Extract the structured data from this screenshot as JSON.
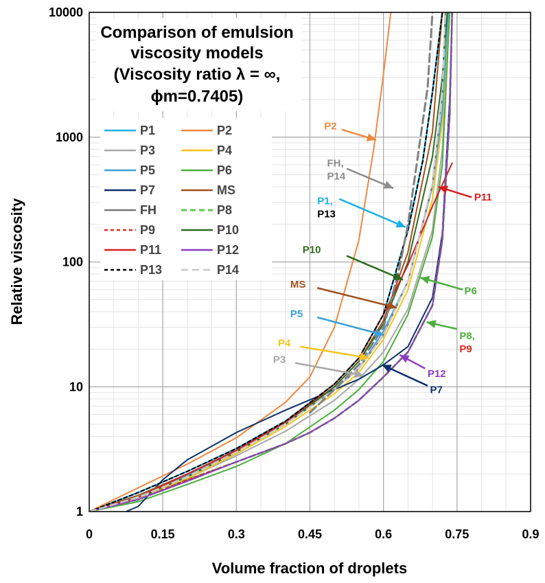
{
  "chart_data": {
    "type": "line",
    "title_lines": [
      "Comparison of emulsion",
      "viscosity models",
      "(Viscosity ratio λ = ∞,",
      "ϕm=0.7405)"
    ],
    "xlabel": "Volume fraction of droplets",
    "ylabel": "Relative viscosity",
    "xlim": [
      0,
      0.9
    ],
    "ylim": [
      1,
      10000
    ],
    "yscale": "log",
    "x_ticks": [
      "0",
      "0.15",
      "0.3",
      "0.45",
      "0.6",
      "0.75",
      "0.9"
    ],
    "x_tick_values": [
      0,
      0.15,
      0.3,
      0.45,
      0.6,
      0.75,
      0.9
    ],
    "y_ticks": [
      "1",
      "10",
      "100",
      "1000",
      "10000"
    ],
    "y_tick_values": [
      1,
      10,
      100,
      1000,
      10000
    ],
    "grid": true,
    "legend_location": "upper-left",
    "series": [
      {
        "name": "P1",
        "color": "#1ab0e8",
        "width": 2.5,
        "dash": "",
        "points": [
          [
            0,
            1
          ],
          [
            0.1,
            1.42
          ],
          [
            0.2,
            2.1
          ],
          [
            0.3,
            3.2
          ],
          [
            0.4,
            5.3
          ],
          [
            0.5,
            10.5
          ],
          [
            0.55,
            17
          ],
          [
            0.6,
            38
          ],
          [
            0.65,
            180
          ],
          [
            0.68,
            640
          ],
          [
            0.7,
            2300
          ],
          [
            0.72,
            10000
          ]
        ]
      },
      {
        "name": "P2",
        "color": "#f0873f",
        "width": 2,
        "dash": "",
        "points": [
          [
            0,
            1
          ],
          [
            0.1,
            1.55
          ],
          [
            0.2,
            2.4
          ],
          [
            0.3,
            3.9
          ],
          [
            0.4,
            7.5
          ],
          [
            0.45,
            12
          ],
          [
            0.5,
            30
          ],
          [
            0.55,
            150
          ],
          [
            0.58,
            800
          ],
          [
            0.6,
            3200
          ],
          [
            0.615,
            10000
          ]
        ]
      },
      {
        "name": "P3",
        "color": "#a8a8a8",
        "width": 2,
        "dash": "",
        "points": [
          [
            0,
            1
          ],
          [
            0.1,
            1.3
          ],
          [
            0.2,
            1.85
          ],
          [
            0.3,
            2.8
          ],
          [
            0.4,
            4.4
          ],
          [
            0.5,
            7.8
          ],
          [
            0.55,
            11.5
          ],
          [
            0.6,
            19
          ],
          [
            0.65,
            42
          ],
          [
            0.7,
            180
          ],
          [
            0.72,
            800
          ],
          [
            0.735,
            10000
          ]
        ]
      },
      {
        "name": "P4",
        "color": "#f5c518",
        "width": 2,
        "dash": "",
        "points": [
          [
            0,
            1
          ],
          [
            0.1,
            1.3
          ],
          [
            0.2,
            1.85
          ],
          [
            0.3,
            2.9
          ],
          [
            0.4,
            4.8
          ],
          [
            0.5,
            8.8
          ],
          [
            0.55,
            13
          ],
          [
            0.6,
            24
          ],
          [
            0.65,
            60
          ],
          [
            0.7,
            320
          ],
          [
            0.72,
            1300
          ],
          [
            0.733,
            10000
          ]
        ]
      },
      {
        "name": "P5",
        "color": "#3a9fd6",
        "width": 2,
        "dash": "",
        "points": [
          [
            0,
            1
          ],
          [
            0.1,
            1.35
          ],
          [
            0.2,
            1.95
          ],
          [
            0.3,
            3.0
          ],
          [
            0.4,
            5.0
          ],
          [
            0.5,
            9.5
          ],
          [
            0.55,
            14
          ],
          [
            0.6,
            28
          ],
          [
            0.65,
            70
          ],
          [
            0.7,
            400
          ],
          [
            0.72,
            1600
          ],
          [
            0.732,
            10000
          ]
        ]
      },
      {
        "name": "P6",
        "color": "#4caf3c",
        "width": 2,
        "dash": "",
        "points": [
          [
            0,
            1
          ],
          [
            0.1,
            1.2
          ],
          [
            0.2,
            1.65
          ],
          [
            0.3,
            2.3
          ],
          [
            0.4,
            3.5
          ],
          [
            0.5,
            6.5
          ],
          [
            0.55,
            9.5
          ],
          [
            0.6,
            16
          ],
          [
            0.65,
            38
          ],
          [
            0.7,
            160
          ],
          [
            0.72,
            600
          ],
          [
            0.735,
            10000
          ]
        ]
      },
      {
        "name": "P7",
        "color": "#0d2f6b",
        "width": 2,
        "dash": "",
        "points": [
          [
            0.075,
            1
          ],
          [
            0.1,
            1.1
          ],
          [
            0.15,
            1.8
          ],
          [
            0.2,
            2.6
          ],
          [
            0.3,
            4.3
          ],
          [
            0.4,
            6.5
          ],
          [
            0.5,
            9.5
          ],
          [
            0.55,
            11.5
          ],
          [
            0.6,
            15
          ],
          [
            0.65,
            21
          ],
          [
            0.7,
            52
          ],
          [
            0.72,
            170
          ],
          [
            0.735,
            2000
          ],
          [
            0.74,
            10000
          ]
        ]
      },
      {
        "name": "MS",
        "color": "#a0501e",
        "width": 2,
        "dash": "",
        "points": [
          [
            0,
            1
          ],
          [
            0.1,
            1.35
          ],
          [
            0.2,
            2.0
          ],
          [
            0.3,
            3.05
          ],
          [
            0.4,
            5.2
          ],
          [
            0.5,
            10
          ],
          [
            0.55,
            16
          ],
          [
            0.6,
            34
          ],
          [
            0.65,
            120
          ],
          [
            0.7,
            1100
          ],
          [
            0.72,
            10000
          ]
        ]
      },
      {
        "name": "FH",
        "color": "#787878",
        "width": 2,
        "dash": "",
        "points": [
          [
            0,
            1
          ],
          [
            0.1,
            1.3
          ],
          [
            0.2,
            1.9
          ],
          [
            0.3,
            3.0
          ],
          [
            0.4,
            5.0
          ],
          [
            0.5,
            9.5
          ],
          [
            0.55,
            14
          ],
          [
            0.6,
            26
          ],
          [
            0.65,
            70
          ],
          [
            0.7,
            420
          ],
          [
            0.72,
            2200
          ],
          [
            0.726,
            10000
          ]
        ]
      },
      {
        "name": "P8",
        "color": "#5ec84a",
        "width": 3,
        "dash": "8 5",
        "points": [
          [
            0,
            1
          ],
          [
            0.1,
            1.25
          ],
          [
            0.2,
            1.8
          ],
          [
            0.3,
            2.5
          ],
          [
            0.4,
            3.5
          ],
          [
            0.45,
            4.3
          ],
          [
            0.5,
            5.6
          ],
          [
            0.55,
            7.8
          ],
          [
            0.6,
            12
          ],
          [
            0.65,
            19
          ],
          [
            0.7,
            45
          ],
          [
            0.72,
            150
          ],
          [
            0.735,
            1500
          ],
          [
            0.74,
            10000
          ]
        ]
      },
      {
        "name": "P9",
        "color": "#e22620",
        "width": 2,
        "dash": "5 4",
        "points": [
          [
            0,
            1
          ],
          [
            0.1,
            1.25
          ],
          [
            0.2,
            1.8
          ],
          [
            0.3,
            2.5
          ],
          [
            0.4,
            3.5
          ],
          [
            0.45,
            4.3
          ],
          [
            0.5,
            5.6
          ],
          [
            0.55,
            7.8
          ],
          [
            0.6,
            12
          ],
          [
            0.65,
            19
          ],
          [
            0.7,
            45
          ],
          [
            0.72,
            150
          ],
          [
            0.735,
            1500
          ],
          [
            0.74,
            10000
          ]
        ]
      },
      {
        "name": "P10",
        "color": "#2e6b1f",
        "width": 2,
        "dash": "",
        "points": [
          [
            0,
            1
          ],
          [
            0.1,
            1.3
          ],
          [
            0.2,
            1.9
          ],
          [
            0.3,
            3.0
          ],
          [
            0.4,
            5.0
          ],
          [
            0.5,
            10
          ],
          [
            0.55,
            16
          ],
          [
            0.6,
            32
          ],
          [
            0.65,
            100
          ],
          [
            0.7,
            700
          ],
          [
            0.72,
            3000
          ],
          [
            0.73,
            10000
          ]
        ]
      },
      {
        "name": "P11",
        "color": "#d41f1f",
        "width": 2,
        "dash": "",
        "points": [
          [
            0,
            1
          ],
          [
            0.1,
            1.3
          ],
          [
            0.2,
            2.0
          ],
          [
            0.3,
            3.1
          ],
          [
            0.4,
            5.2
          ],
          [
            0.5,
            10.5
          ],
          [
            0.55,
            17
          ],
          [
            0.6,
            38
          ],
          [
            0.65,
            95
          ],
          [
            0.7,
            280
          ],
          [
            0.74,
            620
          ]
        ]
      },
      {
        "name": "P12",
        "color": "#8c3cc4",
        "width": 2,
        "dash": "",
        "points": [
          [
            0,
            1
          ],
          [
            0.1,
            1.25
          ],
          [
            0.2,
            1.75
          ],
          [
            0.3,
            2.5
          ],
          [
            0.4,
            3.5
          ],
          [
            0.45,
            4.3
          ],
          [
            0.5,
            5.6
          ],
          [
            0.55,
            7.8
          ],
          [
            0.6,
            12
          ],
          [
            0.65,
            19
          ],
          [
            0.7,
            45
          ],
          [
            0.72,
            150
          ],
          [
            0.735,
            1500
          ],
          [
            0.74,
            10000
          ]
        ]
      },
      {
        "name": "P13",
        "color": "#000000",
        "width": 2,
        "dash": "5 4",
        "points": [
          [
            0,
            1
          ],
          [
            0.1,
            1.42
          ],
          [
            0.2,
            2.1
          ],
          [
            0.3,
            3.2
          ],
          [
            0.4,
            5.3
          ],
          [
            0.5,
            10.5
          ],
          [
            0.55,
            17
          ],
          [
            0.6,
            38
          ],
          [
            0.65,
            180
          ],
          [
            0.68,
            640
          ],
          [
            0.7,
            2300
          ],
          [
            0.72,
            10000
          ]
        ]
      },
      {
        "name": "P14",
        "color": "#c8c8c8",
        "width": 2.5,
        "dash": "10 6",
        "points": [
          [
            0,
            1
          ],
          [
            0.1,
            1.3
          ],
          [
            0.2,
            1.9
          ],
          [
            0.3,
            3.0
          ],
          [
            0.4,
            5.0
          ],
          [
            0.5,
            9.5
          ],
          [
            0.55,
            14
          ],
          [
            0.6,
            26
          ],
          [
            0.65,
            70
          ],
          [
            0.7,
            420
          ],
          [
            0.72,
            2200
          ],
          [
            0.726,
            10000
          ]
        ]
      }
    ],
    "overlay_series": [
      {
        "name": "FH dashed",
        "color": "#808080",
        "width": 3,
        "dash": "12 6",
        "points": [
          [
            0.45,
            6.2
          ],
          [
            0.5,
            9.5
          ],
          [
            0.55,
            15
          ],
          [
            0.6,
            30
          ],
          [
            0.63,
            80
          ],
          [
            0.65,
            200
          ],
          [
            0.67,
            700
          ],
          [
            0.69,
            2500
          ],
          [
            0.7,
            10000
          ]
        ]
      }
    ],
    "annotations": [
      {
        "lines": [
          "P2"
        ],
        "color": "#f0873f",
        "text_x": 0.505,
        "text_y": 1150,
        "anchor": "end",
        "arrow_from": [
          0.515,
          1150
        ],
        "arrow_to": [
          0.585,
          950
        ]
      },
      {
        "lines": [
          "FH,",
          "P14"
        ],
        "color": "#8c8c8c",
        "text_x": 0.485,
        "text_y": 580,
        "anchor": "start",
        "arrow_from": [
          0.525,
          560
        ],
        "arrow_to": [
          0.62,
          390
        ]
      },
      {
        "lines": [
          "P1,",
          "P13"
        ],
        "color": "#1ab0e8",
        "line_colors": [
          "#1ab0e8",
          "#000000"
        ],
        "text_x": 0.465,
        "text_y": 290,
        "anchor": "start",
        "arrow_from": [
          0.51,
          320
        ],
        "arrow_to": [
          0.645,
          190
        ]
      },
      {
        "lines": [
          "P11"
        ],
        "color": "#d41f1f",
        "text_x": 0.785,
        "text_y": 310,
        "anchor": "start",
        "arrow_from": [
          0.78,
          330
        ],
        "arrow_to": [
          0.712,
          400
        ]
      },
      {
        "lines": [
          "P10"
        ],
        "color": "#2e6b1f",
        "text_x": 0.435,
        "text_y": 118,
        "anchor": "start",
        "arrow_from": [
          0.525,
          112
        ],
        "arrow_to": [
          0.64,
          72
        ]
      },
      {
        "lines": [
          "MS"
        ],
        "color": "#a0501e",
        "text_x": 0.41,
        "text_y": 62,
        "anchor": "start",
        "arrow_from": [
          0.465,
          62
        ],
        "arrow_to": [
          0.627,
          43
        ]
      },
      {
        "lines": [
          "P6"
        ],
        "color": "#4caf3c",
        "text_x": 0.765,
        "text_y": 55,
        "anchor": "start",
        "arrow_from": [
          0.762,
          60
        ],
        "arrow_to": [
          0.675,
          75
        ]
      },
      {
        "lines": [
          "P5"
        ],
        "color": "#3a9fd6",
        "text_x": 0.41,
        "text_y": 36,
        "anchor": "start",
        "arrow_from": [
          0.465,
          36
        ],
        "arrow_to": [
          0.6,
          26
        ]
      },
      {
        "lines": [
          "P4"
        ],
        "color": "#f5c518",
        "text_x": 0.385,
        "text_y": 21,
        "anchor": "start",
        "arrow_from": [
          0.43,
          21
        ],
        "arrow_to": [
          0.57,
          17
        ]
      },
      {
        "lines": [
          "P3"
        ],
        "color": "#a8a8a8",
        "text_x": 0.375,
        "text_y": 15.5,
        "anchor": "start",
        "arrow_from": [
          0.42,
          15.5
        ],
        "arrow_to": [
          0.56,
          12.3
        ]
      },
      {
        "lines": [
          "P8,",
          "P9"
        ],
        "color": "#4caf3c",
        "line_colors": [
          "#4caf3c",
          "#e22620"
        ],
        "text_x": 0.755,
        "text_y": 24,
        "anchor": "start",
        "arrow_from": [
          0.75,
          29
        ],
        "arrow_to": [
          0.688,
          33
        ]
      },
      {
        "lines": [
          "P12"
        ],
        "color": "#8c3cc4",
        "text_x": 0.69,
        "text_y": 12,
        "anchor": "start",
        "arrow_from": [
          0.685,
          14
        ],
        "arrow_to": [
          0.633,
          18
        ]
      },
      {
        "lines": [
          "P7"
        ],
        "color": "#0d2f6b",
        "text_x": 0.695,
        "text_y": 8.9,
        "anchor": "start",
        "arrow_from": [
          0.69,
          10.2
        ],
        "arrow_to": [
          0.597,
          15
        ]
      }
    ]
  }
}
